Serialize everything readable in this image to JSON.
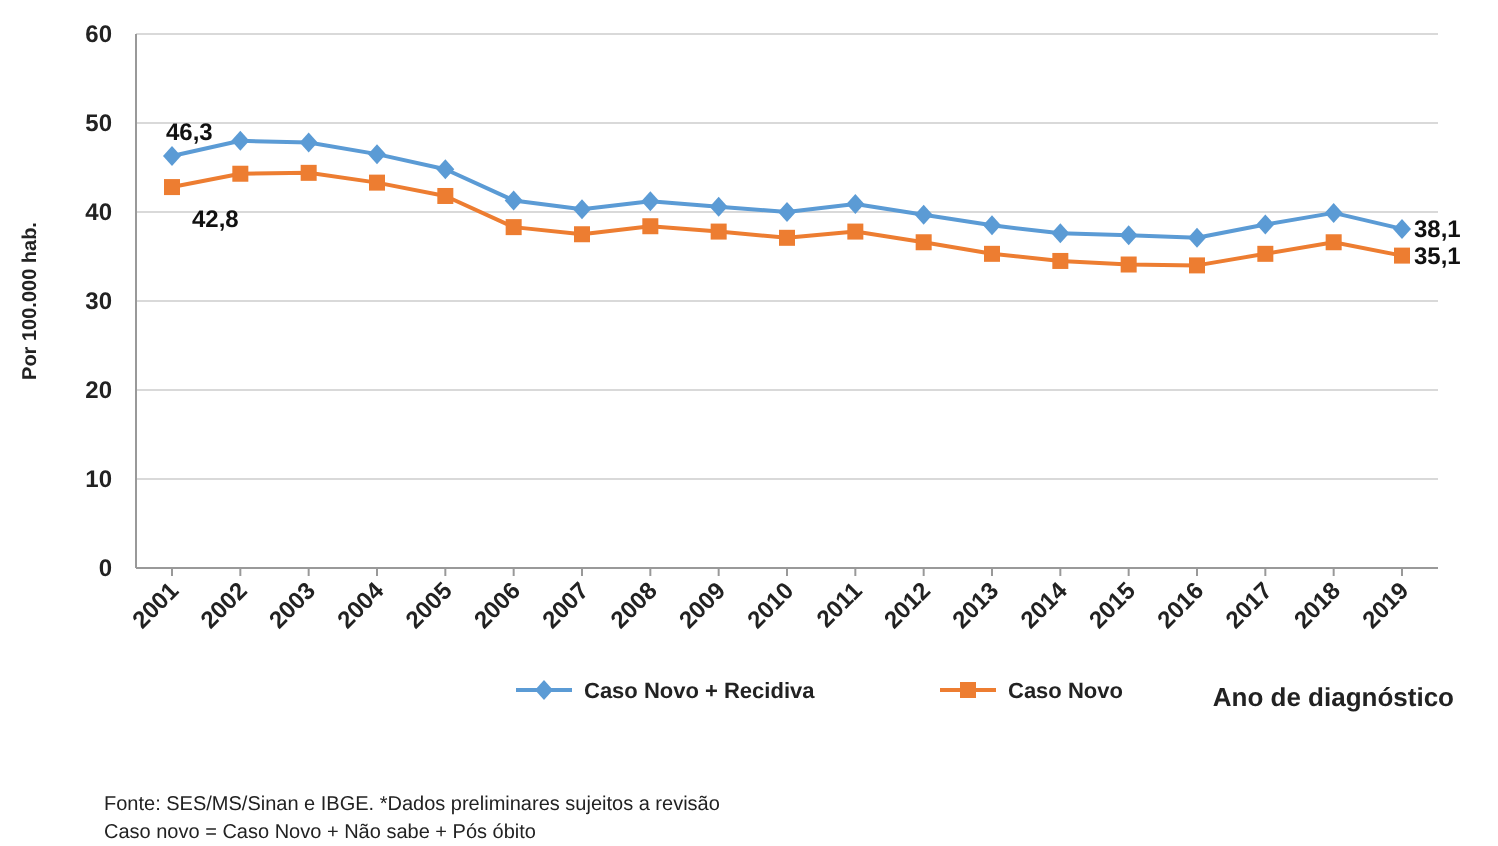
{
  "chart_data": {
    "type": "line",
    "categories": [
      "2001",
      "2002",
      "2003",
      "2004",
      "2005",
      "2006",
      "2007",
      "2008",
      "2009",
      "2010",
      "2011",
      "2012",
      "2013",
      "2014",
      "2015",
      "2016",
      "2017",
      "2018",
      "2019"
    ],
    "series": [
      {
        "name": "Caso Novo + Recidiva",
        "color": "#5b9bd5",
        "marker": "diamond",
        "values": [
          46.3,
          48.0,
          47.8,
          46.5,
          44.8,
          41.3,
          40.3,
          41.2,
          40.6,
          40.0,
          40.9,
          39.7,
          38.5,
          37.6,
          37.4,
          37.1,
          38.6,
          39.9,
          38.1
        ],
        "value_labels": [
          "46,3",
          null,
          null,
          null,
          null,
          null,
          null,
          null,
          null,
          null,
          null,
          null,
          null,
          null,
          null,
          null,
          null,
          null,
          "38,1"
        ]
      },
      {
        "name": "Caso Novo",
        "color": "#ed7d31",
        "marker": "square",
        "values": [
          42.8,
          44.3,
          44.4,
          43.3,
          41.8,
          38.3,
          37.5,
          38.4,
          37.8,
          37.1,
          37.8,
          36.6,
          35.3,
          34.5,
          34.1,
          34.0,
          35.3,
          36.6,
          35.1
        ],
        "value_labels": [
          "42,8",
          null,
          null,
          null,
          null,
          null,
          null,
          null,
          null,
          null,
          null,
          null,
          null,
          null,
          null,
          null,
          null,
          null,
          "35,1"
        ]
      }
    ],
    "ylim": [
      0,
      60
    ],
    "yticks": [
      0,
      10,
      20,
      30,
      40,
      50,
      60
    ],
    "ylabel": "Por 100.000 hab.",
    "xlabel": "Ano de diagnóstico",
    "grid": "y",
    "legend": "bottom",
    "line_style": "solid",
    "annotations": [
      "Fonte: SES/MS/Sinan e IBGE. *Dados preliminares sujeitos a revisão",
      "Caso novo = Caso Novo + Não sabe + Pós óbito"
    ]
  }
}
